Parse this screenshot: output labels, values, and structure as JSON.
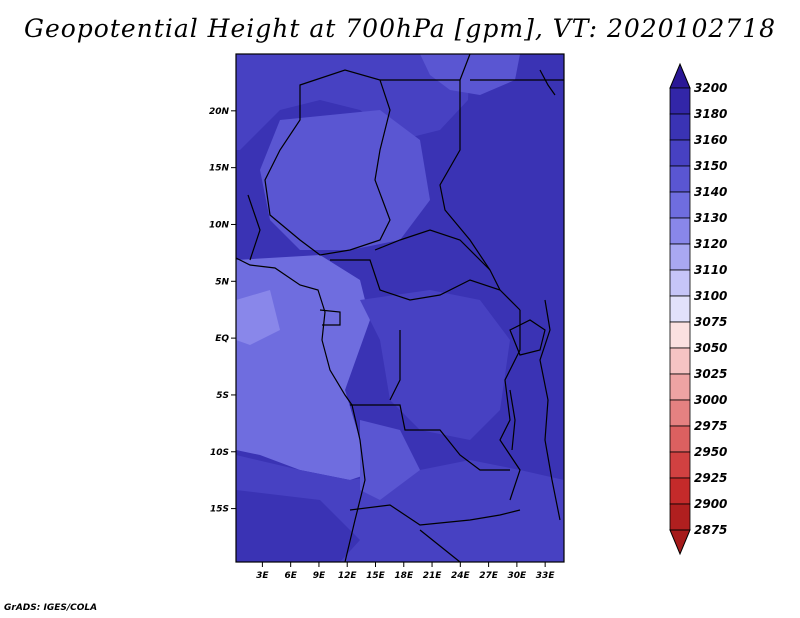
{
  "map": {
    "title": "Geopotential Height at 700hPa [gpm], VT: 2020102718",
    "credit": "GrADS: IGES/COLA",
    "lon_labels": [
      "3E",
      "6E",
      "9E",
      "12E",
      "15E",
      "18E",
      "21E",
      "24E",
      "27E",
      "30E",
      "33E"
    ],
    "lon_values": [
      3,
      6,
      9,
      12,
      15,
      18,
      21,
      24,
      27,
      30,
      33
    ],
    "lat_labels": [
      "20N",
      "15N",
      "10N",
      "5N",
      "EQ",
      "5S",
      "10S",
      "15S"
    ],
    "lat_values": [
      20,
      15,
      10,
      5,
      0,
      -5,
      -10,
      -15
    ],
    "lon_range": [
      0.2,
      35.0
    ],
    "lat_range": [
      -19.7,
      25.0
    ]
  },
  "colorbar": {
    "levels": [
      "3200",
      "3180",
      "3160",
      "3150",
      "3140",
      "3130",
      "3120",
      "3110",
      "3100",
      "3075",
      "3050",
      "3025",
      "3000",
      "2975",
      "2950",
      "2925",
      "2900",
      "2875"
    ],
    "colors": [
      "#2E1B9E",
      "#3226A8",
      "#3A33B4",
      "#4741C2",
      "#5A56D2",
      "#6F6DDF",
      "#8987EA",
      "#A9A8F2",
      "#C6C5F8",
      "#E2E1FB",
      "#FBE0E0",
      "#F6C3C3",
      "#EEA3A3",
      "#E58181",
      "#DC6060",
      "#D14141",
      "#C42A2A",
      "#B01F1F"
    ],
    "top_color": "#2A1796",
    "bottom_color": "#A51A1A"
  }
}
